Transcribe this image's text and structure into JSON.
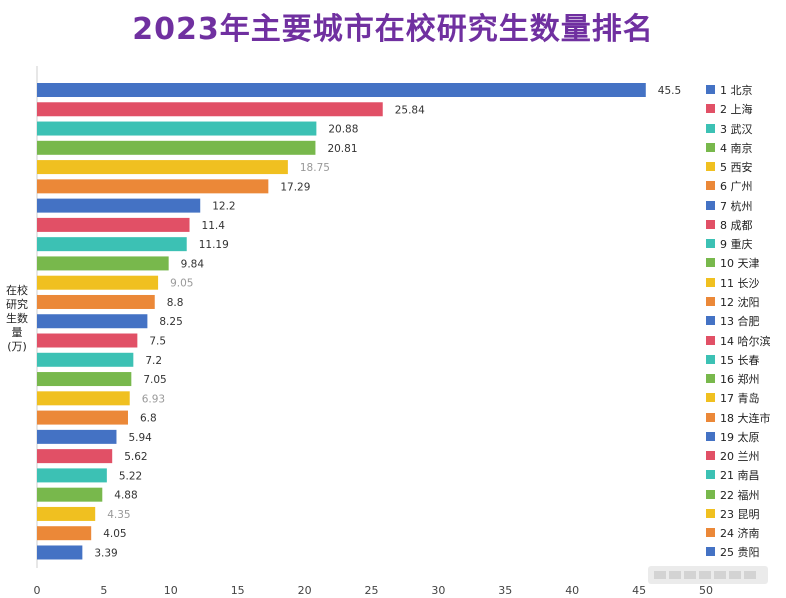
{
  "page": {
    "title": "2023年主要城市在校研究生数量排名",
    "ylabel_lines": [
      "在校",
      "研究",
      "生数",
      "量",
      "(万)"
    ]
  },
  "chart_data": {
    "type": "bar",
    "orientation": "horizontal",
    "title": "2023年主要城市在校研究生数量排名",
    "ylabel": "在校研究生数量(万)",
    "xlim": [
      0,
      50
    ],
    "xticks": [
      0,
      5,
      10,
      15,
      20,
      25,
      30,
      35,
      40,
      45,
      50
    ],
    "legend_position": "right",
    "palette": [
      "#4472c4",
      "#e15066",
      "#3cc1b4",
      "#78b84c",
      "#f0c020",
      "#eb8838"
    ],
    "categories": [
      "1 北京",
      "2 上海",
      "3 武汉",
      "4 南京",
      "5 西安",
      "6 广州",
      "7 杭州",
      "8 成都",
      "9 重庆",
      "10 天津",
      "11 长沙",
      "12 沈阳",
      "13 合肥",
      "14 哈尔滨",
      "15 长春",
      "16 郑州",
      "17 青岛",
      "18 大连市",
      "19 太原",
      "20 兰州",
      "21 南昌",
      "22 福州",
      "23 昆明",
      "24 济南",
      "25 贵阳"
    ],
    "values": [
      45.5,
      25.84,
      20.88,
      20.81,
      18.75,
      17.29,
      12.2,
      11.4,
      11.19,
      9.84,
      9.05,
      8.8,
      8.25,
      7.5,
      7.2,
      7.05,
      6.93,
      6.8,
      5.94,
      5.62,
      5.22,
      4.88,
      4.35,
      4.05,
      3.39
    ]
  }
}
